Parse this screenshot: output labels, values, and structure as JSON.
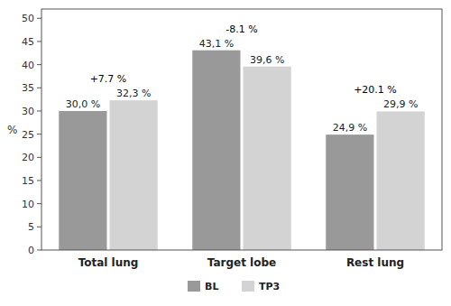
{
  "chart_data": {
    "type": "bar",
    "categories": [
      "Total lung",
      "Target lobe",
      "Rest lung"
    ],
    "series": [
      {
        "name": "BL",
        "color": "#999999",
        "values": [
          30.0,
          43.1,
          24.9
        ],
        "value_labels": [
          "30,0 %",
          "43,1 %",
          "24,9 %"
        ]
      },
      {
        "name": "TP3",
        "color": "#d3d3d3",
        "values": [
          32.3,
          39.6,
          29.9
        ],
        "value_labels": [
          "32,3 %",
          "39,6 %",
          "29,9 %"
        ]
      }
    ],
    "annotations": [
      "+7.7 %",
      "-8.1 %",
      "+20.1 %"
    ],
    "y_label": "%",
    "ylim": [
      0,
      52
    ],
    "yticks": [
      0,
      5,
      10,
      15,
      20,
      25,
      30,
      35,
      40,
      45,
      50
    ],
    "grid": false,
    "legend": "bottom",
    "data_labels": true
  }
}
